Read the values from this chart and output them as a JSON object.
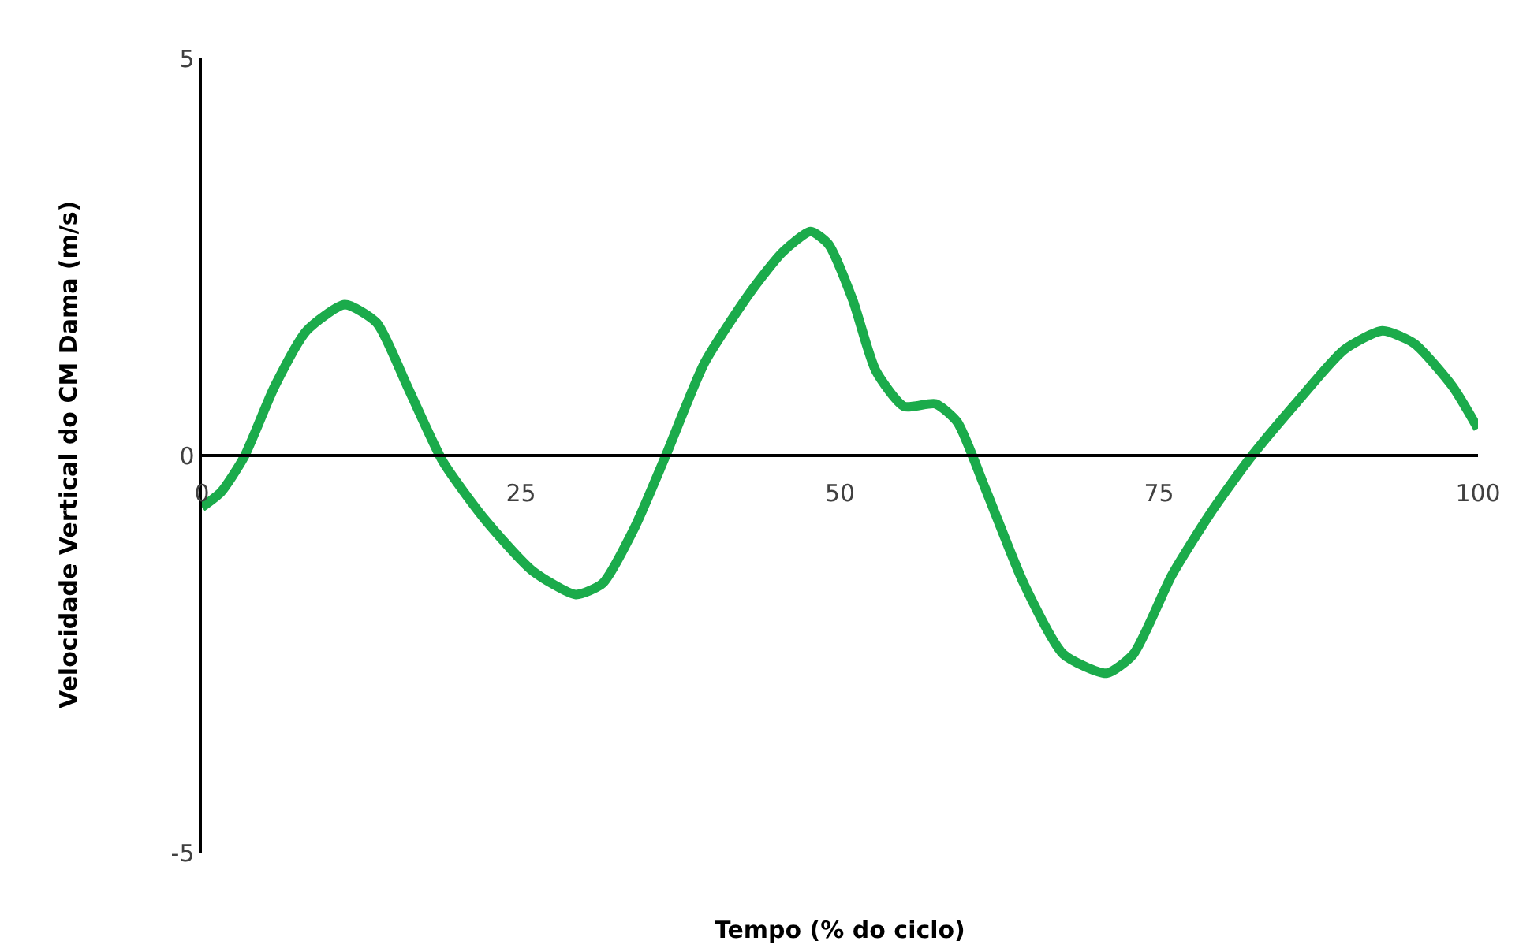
{
  "chart_data": {
    "type": "line",
    "xlabel": "Tempo (% do ciclo)",
    "ylabel": "Velocidade Vertical do CM Dama (m/s)",
    "xlim": [
      0,
      100
    ],
    "xticks": [
      0,
      25,
      50,
      75,
      100
    ],
    "ylim": [
      -5,
      5
    ],
    "yticks": [
      -5,
      0,
      5
    ],
    "marker": "none",
    "line_style": "solid",
    "series": [
      {
        "color": "#1bab4b",
        "x": [
          0,
          1.5,
          3.3,
          5.7,
          8.2,
          11.2,
          13.7,
          16.1,
          18.9,
          22.2,
          25.9,
          29.3,
          31.4,
          33.9,
          36.3,
          39.4,
          43.0,
          45.5,
          47.7,
          49.1,
          51.0,
          52.8,
          55.0,
          57.5,
          59.2,
          61.4,
          64.4,
          67.5,
          70.9,
          73.0,
          76.0,
          79.1,
          82.2,
          85.8,
          89.5,
          92.5,
          95.0,
          98.0,
          100
        ],
        "values": [
          -0.65,
          -0.46,
          -0.02,
          0.87,
          1.57,
          1.9,
          1.67,
          0.87,
          -0.08,
          -0.81,
          -1.45,
          -1.75,
          -1.61,
          -0.91,
          -0.02,
          1.17,
          2.06,
          2.56,
          2.82,
          2.66,
          1.96,
          1.07,
          0.62,
          0.65,
          0.42,
          -0.42,
          -1.61,
          -2.5,
          -2.74,
          -2.5,
          -1.51,
          -0.71,
          -0.02,
          0.67,
          1.33,
          1.57,
          1.41,
          0.87,
          0.34
        ]
      }
    ]
  }
}
